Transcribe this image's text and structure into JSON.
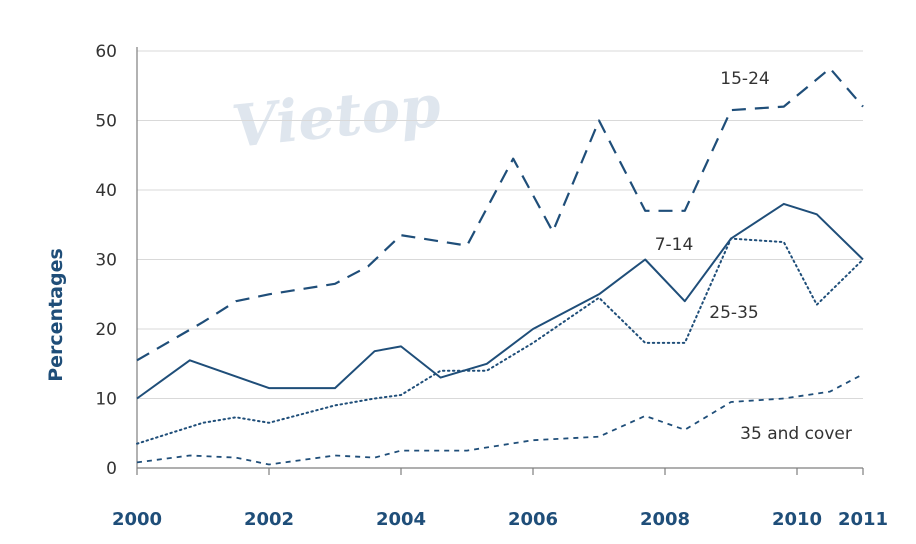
{
  "watermark": "Vietop",
  "chart_data": {
    "type": "line",
    "title": "",
    "xlabel": "",
    "ylabel": "Percentages",
    "x_range": [
      2000,
      2011
    ],
    "ylim": [
      0,
      60
    ],
    "y_ticks": [
      0,
      10,
      20,
      30,
      40,
      50,
      60
    ],
    "x_tick_labels": [
      {
        "label": "2000",
        "value": 2000
      },
      {
        "label": "2002",
        "value": 2002
      },
      {
        "label": "2004",
        "value": 2004
      },
      {
        "label": "2006",
        "value": 2006
      },
      {
        "label": "2008",
        "value": 2008
      },
      {
        "label": "2010",
        "value": 2010
      },
      {
        "label": "2011",
        "value": 2011
      }
    ],
    "grid": "horizontal",
    "legend": "inline labels",
    "color": "#1f4e79",
    "series": [
      {
        "name": "15-24",
        "style": "long-dash",
        "points": [
          [
            2000,
            15.5
          ],
          [
            2001,
            21
          ],
          [
            2001.5,
            24
          ],
          [
            2002,
            25
          ],
          [
            2003,
            26.5
          ],
          [
            2003.5,
            29
          ],
          [
            2004,
            33.5
          ],
          [
            2005,
            32
          ],
          [
            2005.7,
            44.5
          ],
          [
            2006.3,
            34
          ],
          [
            2007,
            50
          ],
          [
            2007.7,
            37
          ],
          [
            2008.3,
            37
          ],
          [
            2009,
            51.5
          ],
          [
            2009.8,
            52
          ],
          [
            2010.5,
            57.5
          ],
          [
            2011,
            52
          ]
        ]
      },
      {
        "name": "7-14",
        "style": "solid",
        "points": [
          [
            2000,
            10
          ],
          [
            2000.8,
            15.5
          ],
          [
            2002,
            11.5
          ],
          [
            2003,
            11.5
          ],
          [
            2003.6,
            16.8
          ],
          [
            2004,
            17.5
          ],
          [
            2004.6,
            13
          ],
          [
            2005.3,
            15
          ],
          [
            2006,
            20
          ],
          [
            2007,
            25
          ],
          [
            2007.7,
            30
          ],
          [
            2008.3,
            24
          ],
          [
            2009,
            33
          ],
          [
            2009.8,
            38
          ],
          [
            2010.3,
            36.5
          ],
          [
            2011,
            30
          ]
        ]
      },
      {
        "name": "25-35",
        "style": "dotted",
        "points": [
          [
            2000,
            3.5
          ],
          [
            2001,
            6.5
          ],
          [
            2001.5,
            7.3
          ],
          [
            2002,
            6.5
          ],
          [
            2003,
            9
          ],
          [
            2003.6,
            10
          ],
          [
            2004,
            10.5
          ],
          [
            2004.6,
            14
          ],
          [
            2005.3,
            14
          ],
          [
            2006,
            18
          ],
          [
            2007,
            24.5
          ],
          [
            2007.7,
            18
          ],
          [
            2008.3,
            18
          ],
          [
            2009,
            33
          ],
          [
            2009.8,
            32.5
          ],
          [
            2010.3,
            23.5
          ],
          [
            2011,
            30
          ]
        ]
      },
      {
        "name": "35 and cover",
        "style": "short-dash",
        "points": [
          [
            2000,
            0.8
          ],
          [
            2000.8,
            1.8
          ],
          [
            2001.5,
            1.5
          ],
          [
            2002,
            0.5
          ],
          [
            2003,
            1.8
          ],
          [
            2003.6,
            1.5
          ],
          [
            2004,
            2.5
          ],
          [
            2005,
            2.5
          ],
          [
            2006,
            4
          ],
          [
            2007,
            4.5
          ],
          [
            2007.7,
            7.5
          ],
          [
            2008.3,
            5.5
          ],
          [
            2009,
            9.5
          ],
          [
            2009.8,
            10
          ],
          [
            2010.5,
            11
          ],
          [
            2011,
            13.5
          ]
        ]
      }
    ]
  }
}
